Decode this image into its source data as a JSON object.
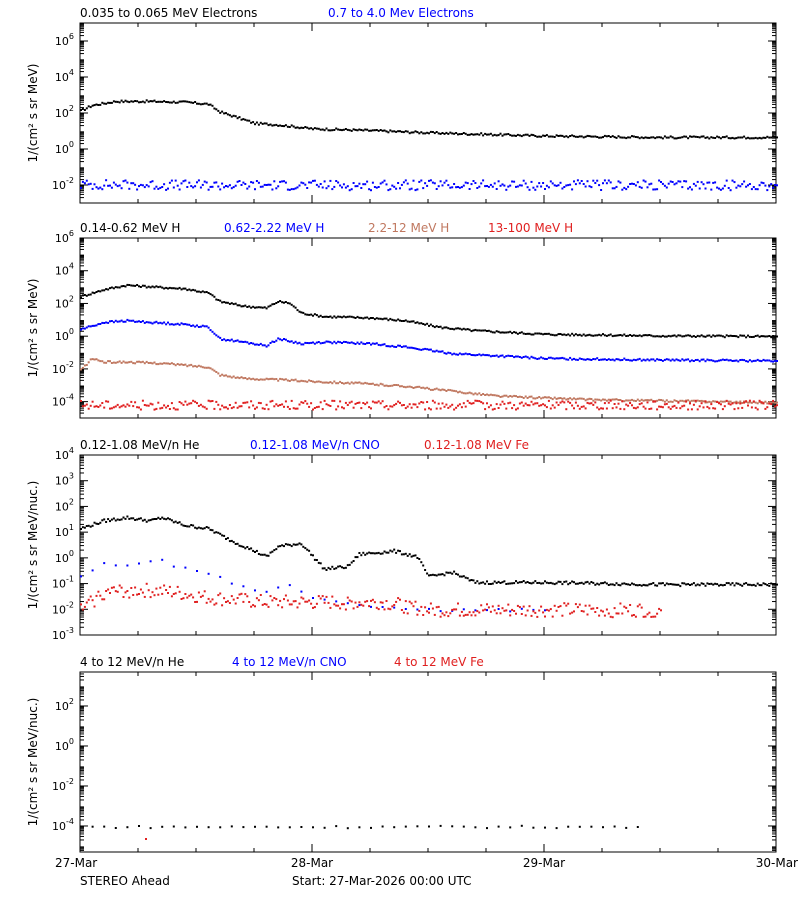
{
  "chart_data": [
    {
      "type": "scatter",
      "ylabel": "1/(cm² s sr MeV)",
      "yscale": "log",
      "ylim": [
        0.001,
        10000000
      ],
      "ytick_labels": [
        {
          "base": "10",
          "exp": "6",
          "value": 1000000
        },
        {
          "base": "10",
          "exp": "4",
          "value": 10000
        },
        {
          "base": "10",
          "exp": "2",
          "value": 100
        },
        {
          "base": "10",
          "exp": "0",
          "value": 1
        },
        {
          "base": "10",
          "exp": "-2",
          "value": 0.01
        }
      ],
      "legend": [
        {
          "label": "0.035 to 0.065 MeV Electrons",
          "color": "#000000"
        },
        {
          "label": "0.7 to 4.0 Mev Electrons",
          "color": "#0000ff"
        }
      ],
      "series": [
        {
          "name": "0.035 to 0.065 MeV Electrons",
          "color": "#000000",
          "points": [
            [
              0,
              150
            ],
            [
              0.05,
              300
            ],
            [
              0.15,
              500
            ],
            [
              0.3,
              500
            ],
            [
              0.45,
              450
            ],
            [
              0.55,
              350
            ],
            [
              0.6,
              130
            ],
            [
              0.7,
              50
            ],
            [
              0.75,
              30
            ],
            [
              0.85,
              25
            ],
            [
              1,
              15
            ],
            [
              1.25,
              12
            ],
            [
              1.5,
              9
            ],
            [
              2,
              6
            ],
            [
              2.5,
              5
            ],
            [
              3,
              5
            ]
          ]
        },
        {
          "name": "0.7 to 4.0 Mev Electrons",
          "color": "#0000ff",
          "points": [
            [
              0,
              0.012
            ],
            [
              0.5,
              0.011
            ],
            [
              1,
              0.011
            ],
            [
              1.5,
              0.011
            ],
            [
              2,
              0.011
            ],
            [
              2.5,
              0.011
            ],
            [
              3,
              0.011
            ]
          ]
        }
      ]
    },
    {
      "type": "scatter",
      "ylabel": "1/(cm² s sr MeV)",
      "yscale": "log",
      "ylim": [
        1e-05,
        1000000
      ],
      "ytick_labels": [
        {
          "base": "10",
          "exp": "6",
          "value": 1000000
        },
        {
          "base": "10",
          "exp": "4",
          "value": 10000
        },
        {
          "base": "10",
          "exp": "2",
          "value": 100
        },
        {
          "base": "10",
          "exp": "0",
          "value": 1
        },
        {
          "base": "10",
          "exp": "-2",
          "value": 0.01
        },
        {
          "base": "10",
          "exp": "-4",
          "value": 0.0001
        }
      ],
      "legend": [
        {
          "label": "0.14-0.62 MeV H",
          "color": "#000000"
        },
        {
          "label": "0.62-2.22 MeV H",
          "color": "#0000ff"
        },
        {
          "label": "2.2-12 MeV H",
          "color": "#c07860"
        },
        {
          "label": "13-100 MeV H",
          "color": "#e02020"
        }
      ],
      "series": [
        {
          "name": "0.14-0.62 MeV H",
          "color": "#000000",
          "points": [
            [
              0,
              300
            ],
            [
              0.1,
              800
            ],
            [
              0.2,
              1500
            ],
            [
              0.3,
              1200
            ],
            [
              0.45,
              900
            ],
            [
              0.55,
              500
            ],
            [
              0.6,
              150
            ],
            [
              0.7,
              80
            ],
            [
              0.8,
              60
            ],
            [
              0.85,
              150
            ],
            [
              0.9,
              120
            ],
            [
              0.95,
              30
            ],
            [
              1.05,
              18
            ],
            [
              1.25,
              15
            ],
            [
              1.4,
              10
            ],
            [
              1.55,
              4
            ],
            [
              1.7,
              2.5
            ],
            [
              2,
              1.5
            ],
            [
              2.5,
              1.2
            ],
            [
              3,
              1.1
            ]
          ]
        },
        {
          "name": "0.62-2.22 MeV H",
          "color": "#0000ff",
          "points": [
            [
              0,
              3
            ],
            [
              0.1,
              8
            ],
            [
              0.2,
              10
            ],
            [
              0.3,
              8
            ],
            [
              0.45,
              6
            ],
            [
              0.55,
              4
            ],
            [
              0.6,
              0.8
            ],
            [
              0.7,
              0.5
            ],
            [
              0.8,
              0.3
            ],
            [
              0.85,
              0.8
            ],
            [
              0.95,
              0.4
            ],
            [
              1.05,
              0.5
            ],
            [
              1.25,
              0.4
            ],
            [
              1.4,
              0.25
            ],
            [
              1.6,
              0.1
            ],
            [
              2,
              0.05
            ],
            [
              2.5,
              0.04
            ],
            [
              3,
              0.035
            ]
          ]
        },
        {
          "name": "2.2-12 MeV H",
          "color": "#c07860",
          "points": [
            [
              0,
              0.01
            ],
            [
              0.05,
              0.05
            ],
            [
              0.1,
              0.03
            ],
            [
              0.2,
              0.03
            ],
            [
              0.35,
              0.025
            ],
            [
              0.55,
              0.015
            ],
            [
              0.6,
              0.005
            ],
            [
              0.7,
              0.003
            ],
            [
              0.85,
              0.0025
            ],
            [
              1,
              0.002
            ],
            [
              1.2,
              0.0015
            ],
            [
              1.4,
              0.001
            ],
            [
              1.6,
              0.0005
            ],
            [
              1.8,
              0.00025
            ],
            [
              2.2,
              0.00015
            ],
            [
              3,
              0.0001
            ]
          ]
        },
        {
          "name": "13-100 MeV H",
          "color": "#e02020",
          "points": [
            [
              0,
              7e-05
            ],
            [
              0.5,
              7e-05
            ],
            [
              1,
              7e-05
            ],
            [
              1.5,
              7e-05
            ],
            [
              2,
              7e-05
            ],
            [
              2.5,
              7e-05
            ],
            [
              3,
              7e-05
            ]
          ]
        }
      ]
    },
    {
      "type": "scatter",
      "ylabel": "1/(cm² s sr MeV/nuc.)",
      "yscale": "log",
      "ylim": [
        0.001,
        10000
      ],
      "ytick_labels": [
        {
          "base": "10",
          "exp": "4",
          "value": 10000
        },
        {
          "base": "10",
          "exp": "3",
          "value": 1000
        },
        {
          "base": "10",
          "exp": "2",
          "value": 100
        },
        {
          "base": "10",
          "exp": "1",
          "value": 10
        },
        {
          "base": "10",
          "exp": "0",
          "value": 1
        },
        {
          "base": "10",
          "exp": "-1",
          "value": 0.1
        },
        {
          "base": "10",
          "exp": "-2",
          "value": 0.01
        },
        {
          "base": "10",
          "exp": "-3",
          "value": 0.001
        }
      ],
      "legend": [
        {
          "label": "0.12-1.08 MeV/n He",
          "color": "#000000"
        },
        {
          "label": "0.12-1.08 MeV/n CNO",
          "color": "#0000ff"
        },
        {
          "label": "0.12-1.08 MeV Fe",
          "color": "#e02020"
        }
      ],
      "series": [
        {
          "name": "0.12-1.08 MeV/n He",
          "color": "#000000",
          "points": [
            [
              0,
              15
            ],
            [
              0.1,
              30
            ],
            [
              0.2,
              40
            ],
            [
              0.3,
              30
            ],
            [
              0.35,
              40
            ],
            [
              0.45,
              20
            ],
            [
              0.55,
              15
            ],
            [
              0.65,
              5
            ],
            [
              0.75,
              2
            ],
            [
              0.8,
              1.2
            ],
            [
              0.85,
              3
            ],
            [
              0.95,
              4
            ],
            [
              1.05,
              0.4
            ],
            [
              1.15,
              0.5
            ],
            [
              1.2,
              1.5
            ],
            [
              1.35,
              2
            ],
            [
              1.45,
              1.2
            ],
            [
              1.5,
              0.2
            ],
            [
              1.6,
              0.3
            ],
            [
              1.7,
              0.12
            ],
            [
              2,
              0.12
            ],
            [
              2.5,
              0.1
            ],
            [
              3,
              0.1
            ]
          ]
        },
        {
          "name": "0.12-1.08 MeV/n CNO",
          "color": "#0000ff",
          "points": [
            [
              0,
              0.2
            ],
            [
              0.1,
              0.6
            ],
            [
              0.2,
              0.6
            ],
            [
              0.35,
              0.8
            ],
            [
              0.45,
              0.4
            ],
            [
              0.55,
              0.3
            ],
            [
              0.65,
              0.1
            ],
            [
              0.8,
              0.05
            ],
            [
              0.9,
              0.1
            ],
            [
              1,
              0.03
            ],
            [
              1.4,
              0.01
            ],
            [
              2,
              0.01
            ]
          ]
        },
        {
          "name": "0.12-1.08 MeV Fe",
          "color": "#e02020",
          "points": [
            [
              0,
              0.01
            ],
            [
              0.1,
              0.05
            ],
            [
              0.25,
              0.06
            ],
            [
              0.4,
              0.05
            ],
            [
              0.55,
              0.03
            ],
            [
              0.8,
              0.02
            ],
            [
              1,
              0.02
            ],
            [
              1.3,
              0.02
            ],
            [
              1.5,
              0.01
            ],
            [
              2,
              0.01
            ],
            [
              2.5,
              0.01
            ]
          ]
        }
      ]
    },
    {
      "type": "scatter",
      "ylabel": "1/(cm² s sr MeV/nuc.)",
      "yscale": "log",
      "ylim": [
        5e-06,
        5000
      ],
      "ytick_labels": [
        {
          "base": "10",
          "exp": "2",
          "value": 100
        },
        {
          "base": "10",
          "exp": "0",
          "value": 1
        },
        {
          "base": "10",
          "exp": "-2",
          "value": 0.01
        },
        {
          "base": "10",
          "exp": "-4",
          "value": 0.0001
        }
      ],
      "legend": [
        {
          "label": "4 to 12 MeV/n He",
          "color": "#000000"
        },
        {
          "label": "4 to 12 MeV/n CNO",
          "color": "#0000ff"
        },
        {
          "label": "4 to 12 MeV Fe",
          "color": "#e02020"
        }
      ],
      "series": [
        {
          "name": "4 to 12 MeV/n He",
          "color": "#000000",
          "points": [
            [
              0.05,
              0.0001
            ],
            [
              0.2,
              0.0001
            ],
            [
              0.35,
              0.0001
            ],
            [
              0.5,
              0.0001
            ],
            [
              0.7,
              0.0001
            ],
            [
              1,
              0.0001
            ],
            [
              1.3,
              0.0001
            ],
            [
              1.6,
              0.0001
            ],
            [
              2,
              0.0001
            ],
            [
              2.4,
              0.0001
            ]
          ]
        },
        {
          "name": "4 to 12 MeV Fe",
          "color": "#e02020",
          "points": [
            [
              0.28,
              2.5e-05
            ]
          ]
        }
      ]
    }
  ],
  "x_axis": {
    "ticks": [
      {
        "label": "27-Mar",
        "value": 0
      },
      {
        "label": "28-Mar",
        "value": 1
      },
      {
        "label": "29-Mar",
        "value": 2
      },
      {
        "label": "30-Mar",
        "value": 3
      }
    ]
  },
  "footer": {
    "spacecraft": "STEREO Ahead",
    "start": "Start: 27-Mar-2026 00:00 UTC"
  }
}
